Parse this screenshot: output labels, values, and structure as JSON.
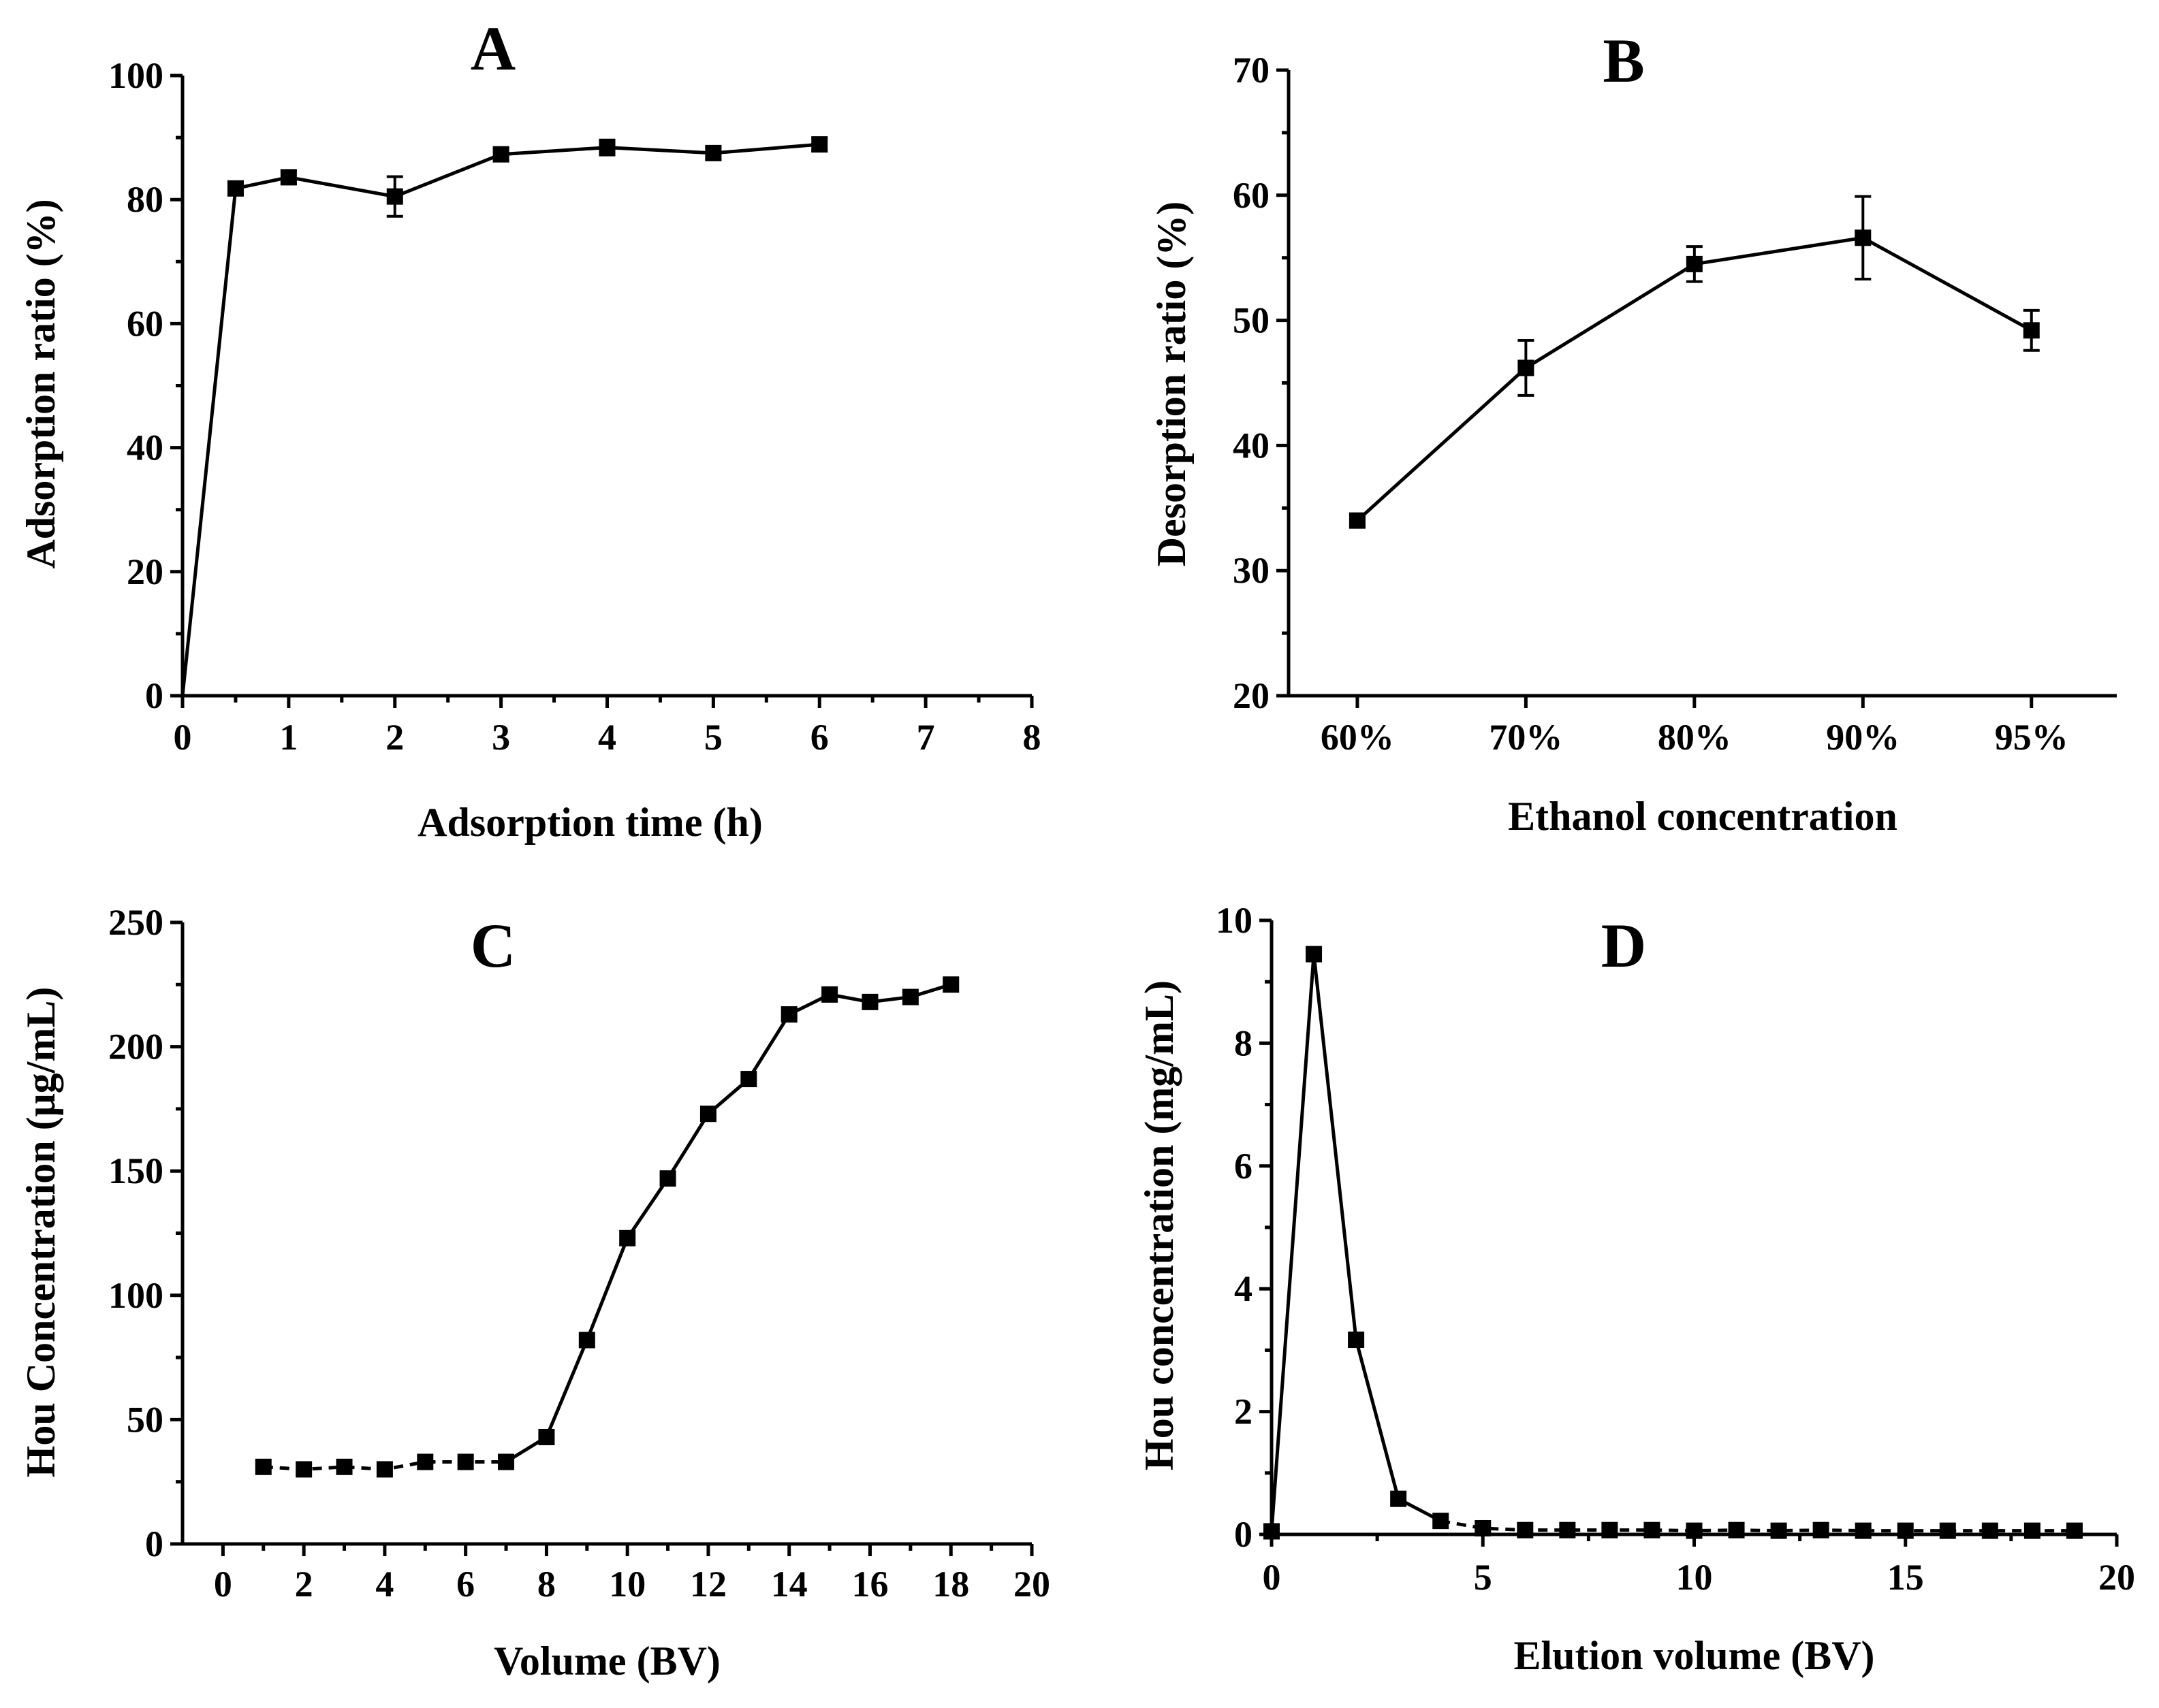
{
  "chart_data": [
    {
      "panel": "A",
      "type": "line",
      "title": "A",
      "xlabel": "Adsorption time (h)",
      "ylabel": "Adsorption ratio (%)",
      "xlim": [
        0,
        8
      ],
      "ylim": [
        0,
        100
      ],
      "xticks": [
        0,
        1,
        2,
        3,
        4,
        5,
        6,
        7,
        8
      ],
      "yticks": [
        0,
        20,
        40,
        60,
        80,
        100
      ],
      "series": [
        {
          "name": "Adsorption ratio",
          "x": [
            0,
            0.5,
            1,
            2,
            3,
            4,
            5,
            6
          ],
          "y": [
            0,
            81.8,
            83.6,
            80.5,
            87.3,
            88.4,
            87.5,
            88.9
          ],
          "err": [
            0,
            1.0,
            1.0,
            3.2,
            1.0,
            1.2,
            1.0,
            1.0
          ],
          "markers": [
            false,
            true,
            true,
            true,
            true,
            true,
            true,
            true
          ]
        }
      ]
    },
    {
      "panel": "B",
      "type": "line",
      "title": "B",
      "xlabel": "Ethanol concentration",
      "ylabel": "Desorption ratio (%)",
      "categories": [
        "60%",
        "70%",
        "80%",
        "90%",
        "95%"
      ],
      "ylim": [
        20,
        70
      ],
      "yticks": [
        20,
        30,
        40,
        50,
        60,
        70
      ],
      "series": [
        {
          "name": "Desorption ratio",
          "values": [
            34.0,
            46.2,
            54.5,
            56.6,
            49.2
          ],
          "err": [
            0.5,
            2.2,
            1.4,
            3.3,
            1.6
          ]
        }
      ]
    },
    {
      "panel": "C",
      "type": "line",
      "title": "C",
      "xlabel": "Volume (BV)",
      "ylabel": "Hou Concentration (μg/mL)",
      "xlim": [
        -1,
        20
      ],
      "ylim": [
        0,
        250
      ],
      "xticks": [
        0,
        2,
        4,
        6,
        8,
        10,
        12,
        14,
        16,
        18,
        20
      ],
      "yticks": [
        0,
        50,
        100,
        150,
        200,
        250
      ],
      "series": [
        {
          "name": "Hou concentration",
          "x": [
            1,
            2,
            3,
            4,
            5,
            6,
            7,
            8,
            9,
            10,
            11,
            12,
            13,
            14,
            15,
            16,
            17,
            18
          ],
          "y": [
            31,
            30,
            31,
            30,
            33,
            33,
            33,
            43,
            82,
            123,
            147,
            173,
            187,
            213,
            221,
            218,
            220,
            225
          ]
        }
      ]
    },
    {
      "panel": "D",
      "type": "line",
      "title": "D",
      "xlabel": "Elution volume (BV)",
      "ylabel": "Hou concentration (mg/mL)",
      "xlim": [
        0,
        20
      ],
      "ylim": [
        0,
        10
      ],
      "xticks": [
        0,
        5,
        10,
        15,
        20
      ],
      "yticks": [
        0,
        2,
        4,
        6,
        8,
        10
      ],
      "series": [
        {
          "name": "Hou concentration",
          "x": [
            0,
            1,
            2,
            3,
            4,
            5,
            6,
            7,
            8,
            9,
            10,
            11,
            12,
            13,
            14,
            15,
            16,
            17,
            18,
            19
          ],
          "y": [
            0.05,
            9.45,
            3.17,
            0.58,
            0.22,
            0.1,
            0.07,
            0.07,
            0.07,
            0.07,
            0.06,
            0.07,
            0.06,
            0.07,
            0.06,
            0.06,
            0.06,
            0.06,
            0.06,
            0.06
          ]
        }
      ]
    }
  ]
}
